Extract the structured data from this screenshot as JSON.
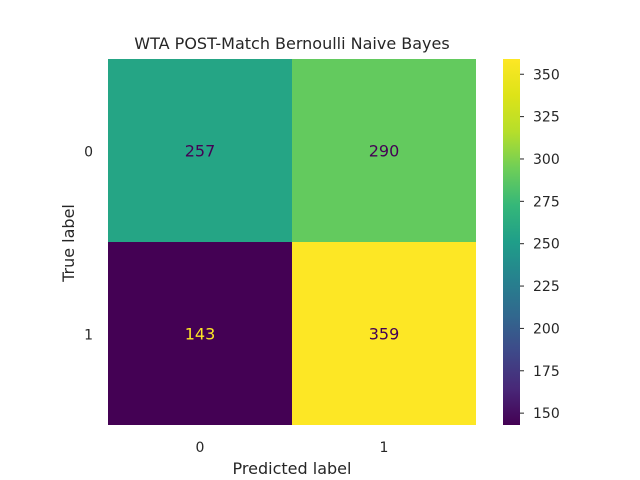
{
  "chart_data": {
    "type": "heatmap",
    "title": "WTA POST-Match Bernoulli Naive Bayes",
    "xlabel": "Predicted label",
    "ylabel": "True label",
    "x_categories": [
      "0",
      "1"
    ],
    "y_categories": [
      "0",
      "1"
    ],
    "values": [
      [
        257,
        290
      ],
      [
        143,
        359
      ]
    ],
    "colormap": "viridis",
    "colorbar": {
      "range": [
        143,
        359
      ],
      "ticks": [
        150,
        175,
        200,
        225,
        250,
        275,
        300,
        325,
        350
      ],
      "tick_labels": [
        "150",
        "175",
        "200",
        "225",
        "250",
        "275",
        "300",
        "325",
        "350"
      ]
    },
    "grid": false,
    "label_colors": {
      "dark": "#440154",
      "light": "#fde725"
    }
  }
}
